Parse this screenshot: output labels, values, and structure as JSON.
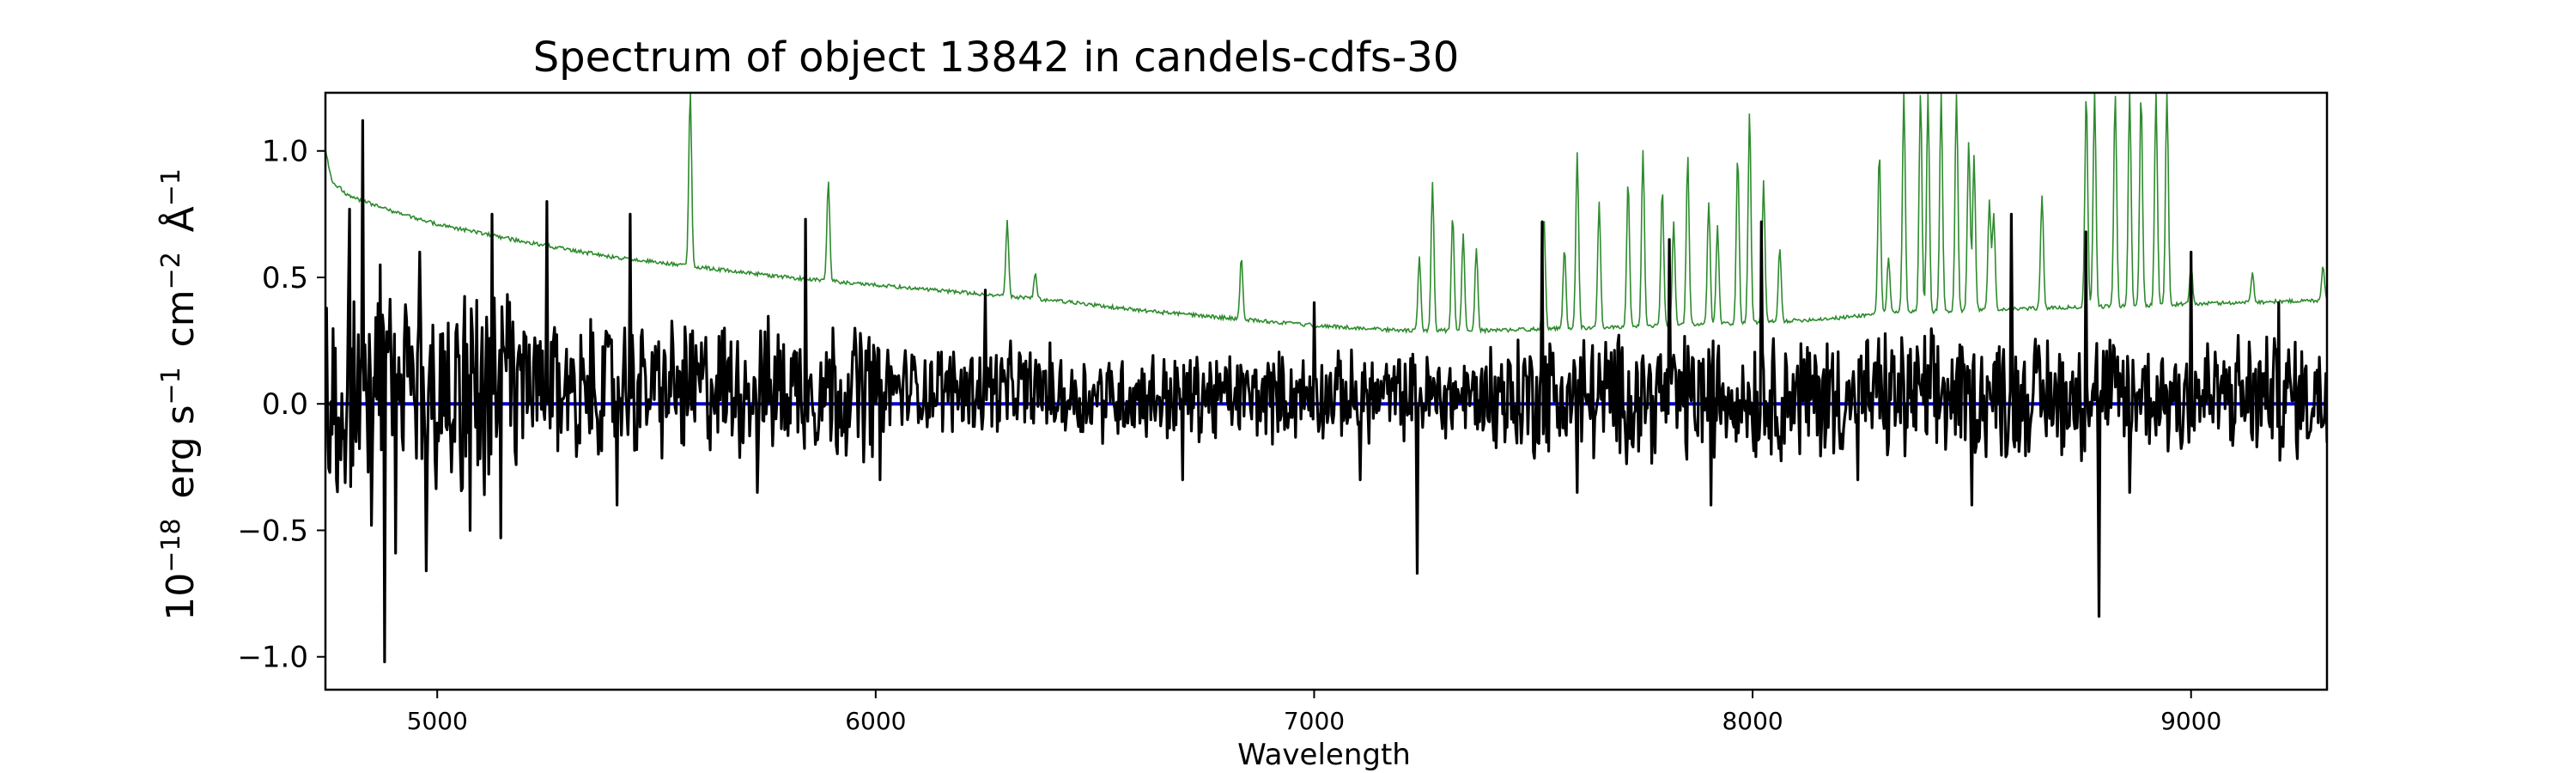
{
  "chart_data": {
    "type": "line",
    "title": "Spectrum of object 13842 in candels-cdfs-30",
    "xlabel": "Wavelength",
    "ylabel": {
      "base": "10",
      "exp": "−18",
      "units": [
        {
          "text": "erg s",
          "sup": "−1"
        },
        {
          "text": "cm",
          "sup": "−2"
        },
        {
          "text": "Å",
          "sup": "−1"
        }
      ]
    },
    "xlim": [
      4745,
      9310
    ],
    "ylim": [
      -1.13,
      1.23
    ],
    "xticks": [
      5000,
      6000,
      7000,
      8000,
      9000
    ],
    "xtick_labels": [
      "5000",
      "6000",
      "7000",
      "8000",
      "9000"
    ],
    "yticks": [
      1.0,
      0.5,
      0.0,
      -0.5,
      -1.0
    ],
    "ytick_labels": [
      "1.0",
      "0.5",
      "0.0",
      "−0.5",
      "−1.0"
    ],
    "grid": false,
    "series": [
      {
        "role": "error",
        "color": "#2e8b2e",
        "anchors": [
          [
            4745,
            1.0
          ],
          [
            4760,
            0.88
          ],
          [
            4800,
            0.82
          ],
          [
            4900,
            0.76
          ],
          [
            5000,
            0.71
          ],
          [
            5200,
            0.64
          ],
          [
            5400,
            0.58
          ],
          [
            5600,
            0.54
          ],
          [
            5800,
            0.5
          ],
          [
            6000,
            0.47
          ],
          [
            6200,
            0.44
          ],
          [
            6400,
            0.41
          ],
          [
            6600,
            0.37
          ],
          [
            6800,
            0.34
          ],
          [
            7000,
            0.31
          ],
          [
            7200,
            0.29
          ],
          [
            7400,
            0.29
          ],
          [
            7600,
            0.3
          ],
          [
            7800,
            0.31
          ],
          [
            8000,
            0.32
          ],
          [
            8200,
            0.34
          ],
          [
            8300,
            0.36
          ],
          [
            8500,
            0.37
          ],
          [
            8700,
            0.38
          ],
          [
            8900,
            0.39
          ],
          [
            9100,
            0.4
          ],
          [
            9310,
            0.41
          ]
        ],
        "peaks": [
          [
            5577,
            1.23
          ],
          [
            5892,
            0.88
          ],
          [
            6300,
            0.72
          ],
          [
            6364,
            0.52
          ],
          [
            6834,
            0.58
          ],
          [
            7240,
            0.58
          ],
          [
            7270,
            0.87
          ],
          [
            7316,
            0.75
          ],
          [
            7340,
            0.67
          ],
          [
            7370,
            0.62
          ],
          [
            7524,
            0.75
          ],
          [
            7571,
            0.62
          ],
          [
            7600,
            1.0
          ],
          [
            7650,
            0.8
          ],
          [
            7716,
            0.88
          ],
          [
            7750,
            1.0
          ],
          [
            7794,
            0.85
          ],
          [
            7820,
            0.72
          ],
          [
            7852,
            0.98
          ],
          [
            7900,
            0.8
          ],
          [
            7920,
            0.7
          ],
          [
            7966,
            0.98
          ],
          [
            7993,
            1.15
          ],
          [
            8025,
            0.88
          ],
          [
            8062,
            0.62
          ],
          [
            8289,
            1.0
          ],
          [
            8310,
            0.58
          ],
          [
            8345,
            1.23
          ],
          [
            8383,
            1.23
          ],
          [
            8400,
            1.23
          ],
          [
            8430,
            1.23
          ],
          [
            8465,
            1.23
          ],
          [
            8493,
            1.05
          ],
          [
            8505,
            0.98
          ],
          [
            8540,
            0.8
          ],
          [
            8550,
            0.75
          ],
          [
            8660,
            0.83
          ],
          [
            8761,
            1.23
          ],
          [
            8780,
            1.23
          ],
          [
            8827,
            1.23
          ],
          [
            8860,
            1.23
          ],
          [
            8886,
            1.23
          ],
          [
            8920,
            1.23
          ],
          [
            8945,
            1.23
          ],
          [
            9000,
            0.55
          ],
          [
            9140,
            0.52
          ],
          [
            9301,
            0.55
          ]
        ]
      },
      {
        "role": "model",
        "color": "#0000cc",
        "points": [
          [
            4745,
            0.0
          ],
          [
            9310,
            0.0
          ]
        ]
      },
      {
        "role": "flux",
        "color": "#000000",
        "spikes": [
          [
            4770,
            -0.3
          ],
          [
            4800,
            0.77
          ],
          [
            4830,
            1.12
          ],
          [
            4850,
            -0.48
          ],
          [
            4870,
            0.55
          ],
          [
            4880,
            -1.02
          ],
          [
            4905,
            -0.59
          ],
          [
            4960,
            0.6
          ],
          [
            4975,
            -0.66
          ],
          [
            5075,
            -0.5
          ],
          [
            5125,
            0.75
          ],
          [
            5145,
            -0.53
          ],
          [
            5250,
            0.8
          ],
          [
            5410,
            -0.4
          ],
          [
            5440,
            0.75
          ],
          [
            5730,
            -0.35
          ],
          [
            5840,
            0.73
          ],
          [
            6010,
            -0.3
          ],
          [
            6250,
            0.45
          ],
          [
            6700,
            -0.3
          ],
          [
            7000,
            0.4
          ],
          [
            7105,
            -0.3
          ],
          [
            7235,
            -0.67
          ],
          [
            7520,
            0.72
          ],
          [
            7600,
            -0.35
          ],
          [
            7810,
            0.65
          ],
          [
            7905,
            -0.4
          ],
          [
            8020,
            0.72
          ],
          [
            8240,
            -0.3
          ],
          [
            8500,
            -0.4
          ],
          [
            8590,
            0.75
          ],
          [
            8760,
            0.68
          ],
          [
            8790,
            -0.84
          ],
          [
            8860,
            -0.35
          ],
          [
            9000,
            0.6
          ],
          [
            9200,
            0.4
          ]
        ]
      }
    ]
  }
}
